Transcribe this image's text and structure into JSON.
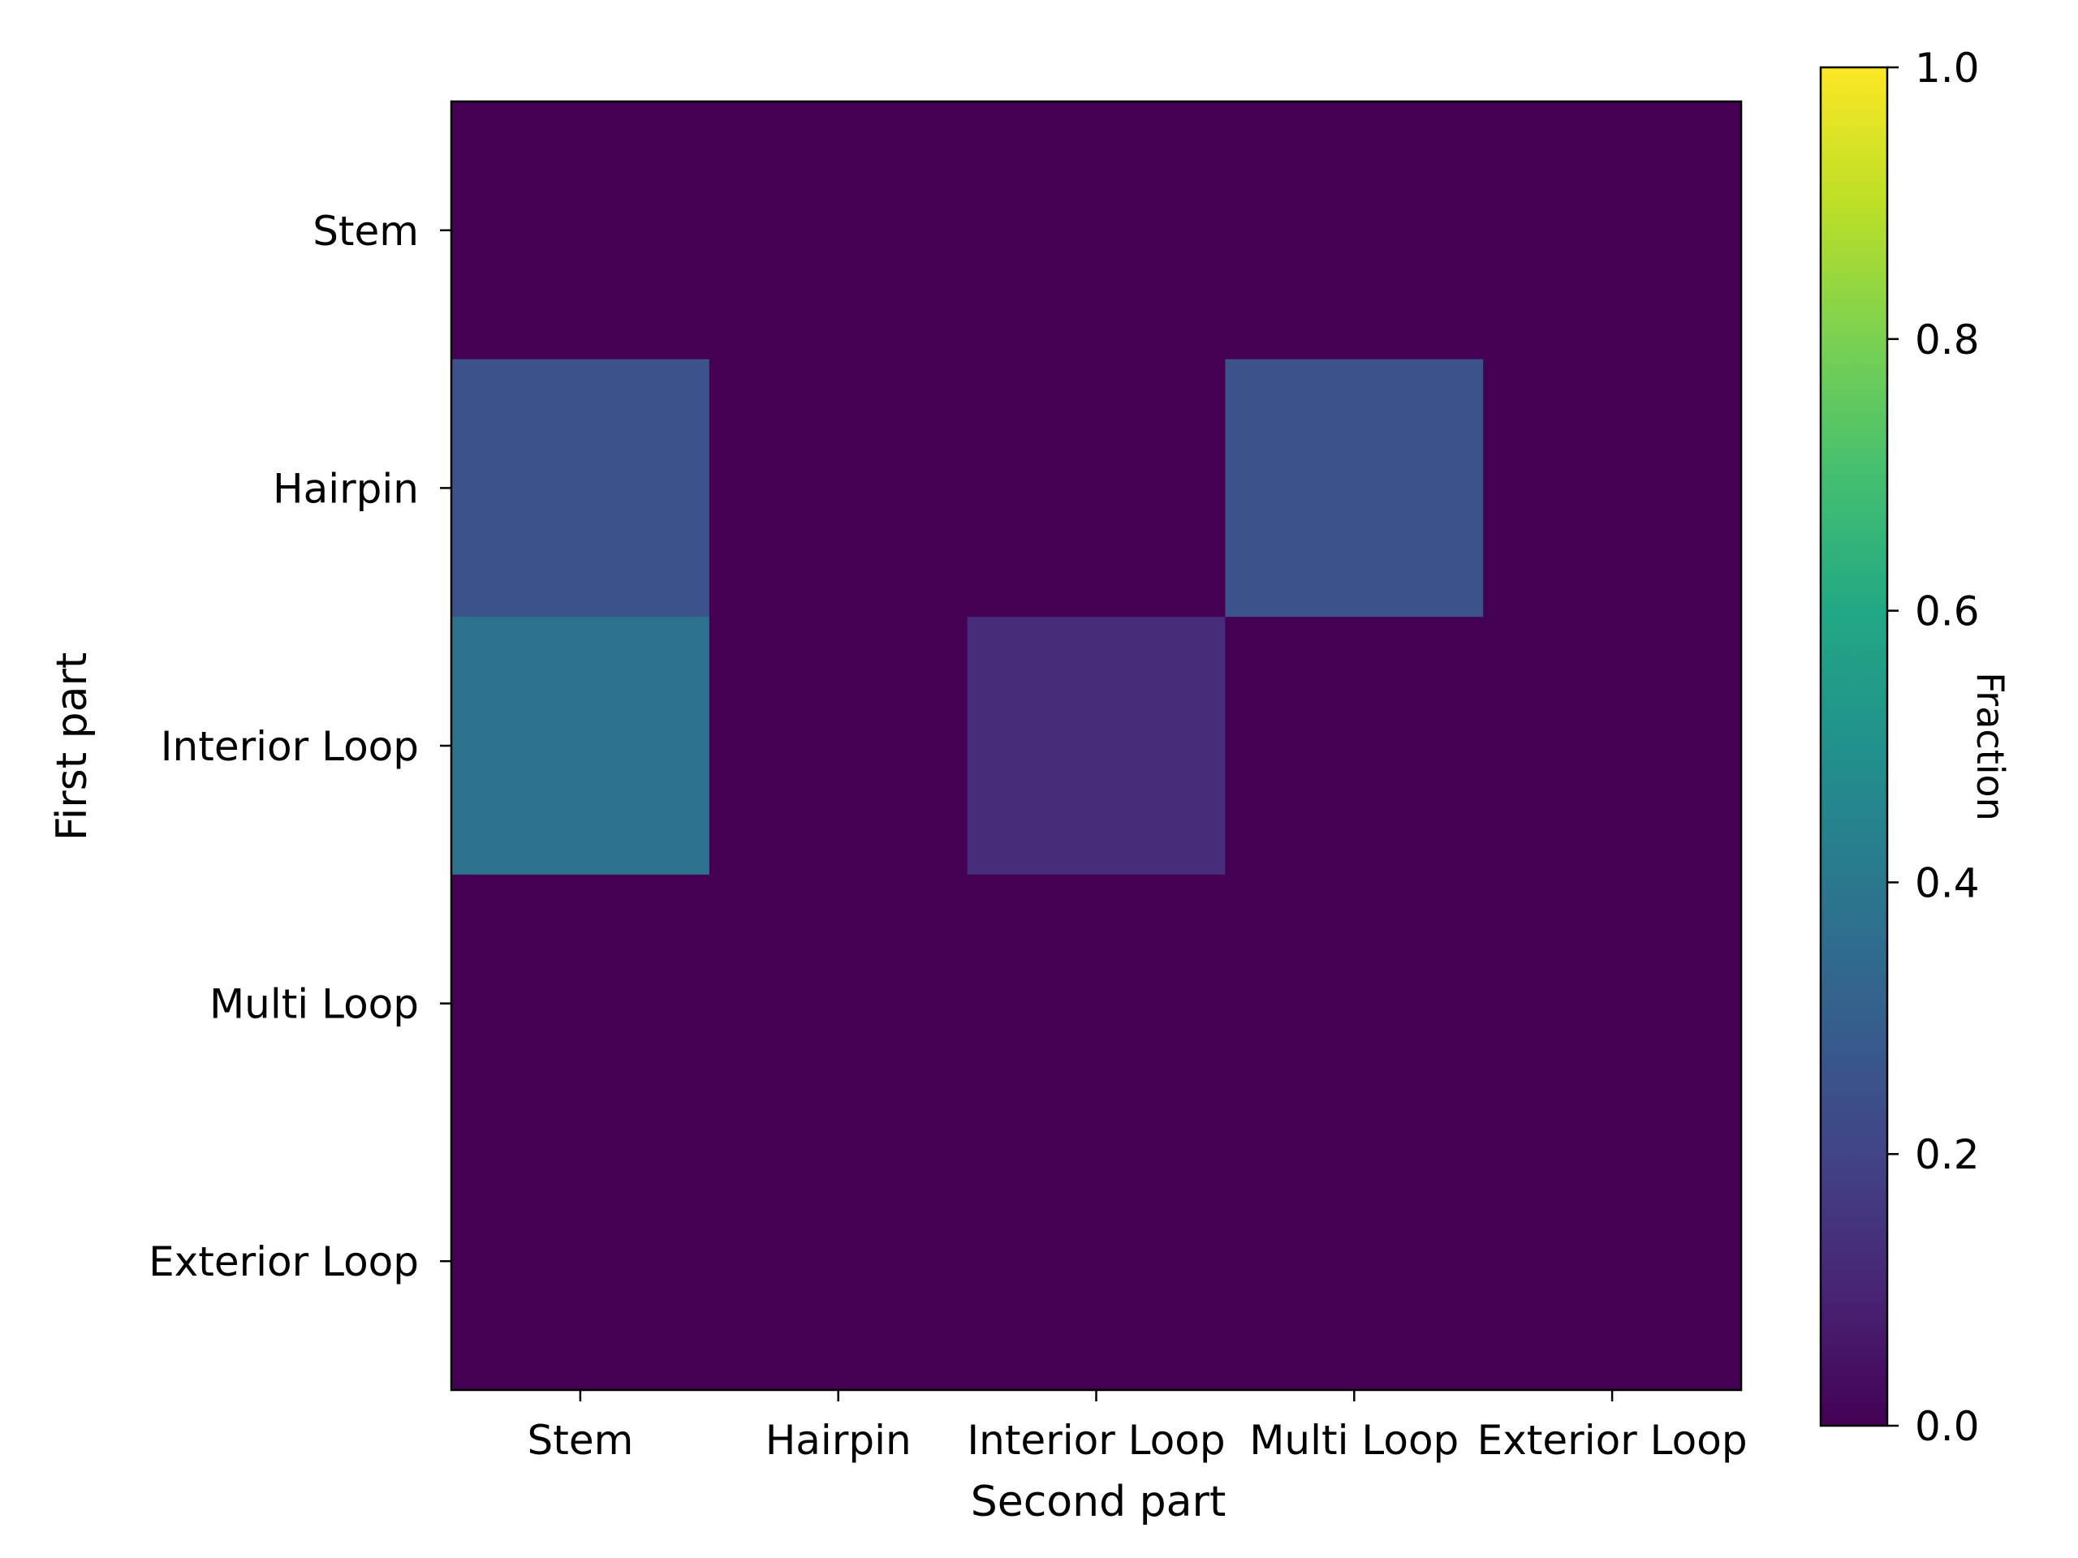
{
  "chart_data": {
    "type": "heatmap",
    "xlabel": "Second part",
    "ylabel": "First part",
    "x_categories": [
      "Stem",
      "Hairpin",
      "Interior Loop",
      "Multi Loop",
      "Exterior Loop"
    ],
    "y_categories": [
      "Stem",
      "Hairpin",
      "Interior Loop",
      "Multi Loop",
      "Exterior Loop"
    ],
    "values": [
      [
        0.0,
        0.0,
        0.0,
        0.0,
        0.0
      ],
      [
        0.25,
        0.0,
        0.0,
        0.25,
        0.0
      ],
      [
        0.375,
        0.0,
        0.125,
        0.0,
        0.0
      ],
      [
        0.0,
        0.0,
        0.0,
        0.0,
        0.0
      ],
      [
        0.0,
        0.0,
        0.0,
        0.0,
        0.0
      ]
    ],
    "colormap": "viridis",
    "colorbar": {
      "label": "Fraction",
      "range": [
        0.0,
        1.0
      ],
      "ticks": [
        "0.0",
        "0.2",
        "0.4",
        "0.6",
        "0.8",
        "1.0"
      ]
    },
    "grid": false,
    "legend": "none"
  }
}
